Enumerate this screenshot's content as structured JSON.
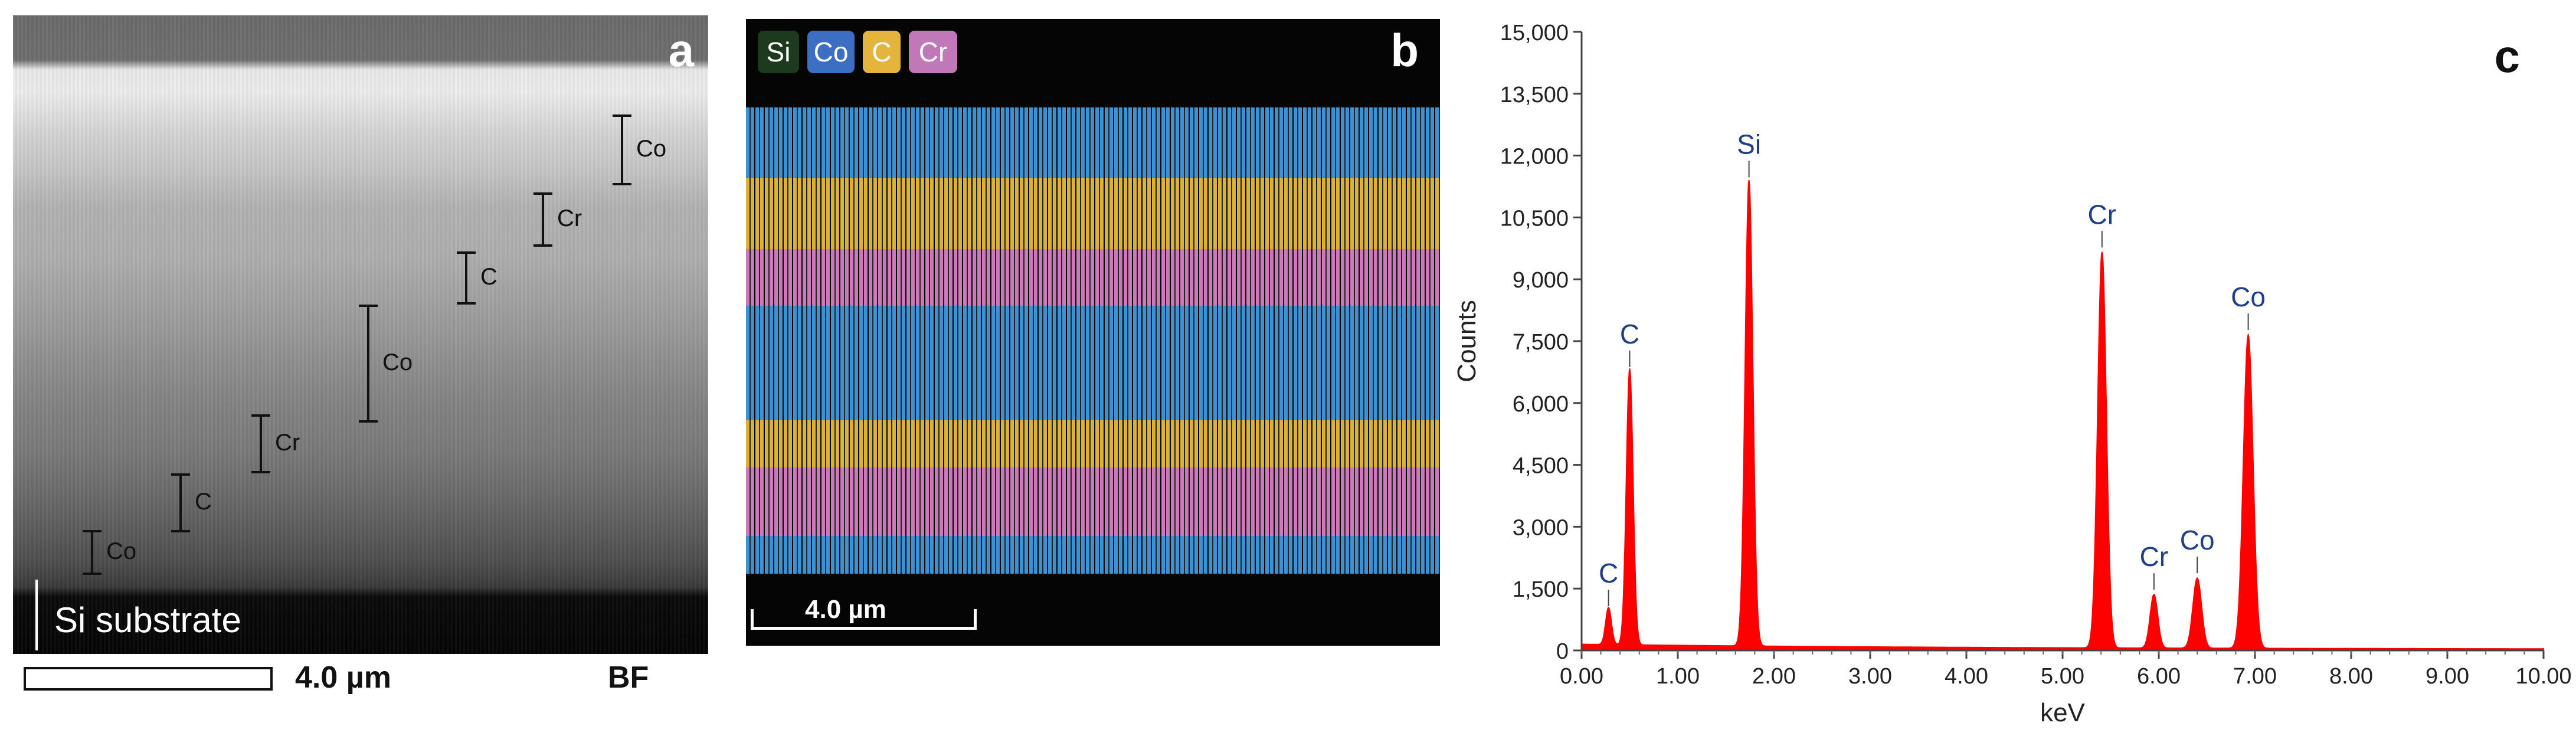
{
  "panel_a": {
    "letter": "a",
    "layers": [
      {
        "label": "Co",
        "top": 0
      },
      {
        "label": "Cr",
        "top": 0
      },
      {
        "label": "C",
        "top": 0
      },
      {
        "label": "Co",
        "top": 0
      },
      {
        "label": "Cr",
        "top": 0
      },
      {
        "label": "C",
        "top": 0
      },
      {
        "label": "Co",
        "top": 0
      }
    ],
    "substrate_label": "Si substrate",
    "scalebar_label": "4.0 µm",
    "mode_label": "BF"
  },
  "panel_b": {
    "letter": "b",
    "legend": [
      {
        "label": "Si",
        "color": "#1e3a1e"
      },
      {
        "label": "Co",
        "color": "#3c6fc4"
      },
      {
        "label": "C",
        "color": "#e4b43c"
      },
      {
        "label": "Cr",
        "color": "#c078b8"
      }
    ],
    "band_colors": {
      "Co": "#3f90cf",
      "C": "#d9b23e",
      "Cr": "#c97ab8",
      "Si": "#050505"
    },
    "scalebar_label": "4.0 µm"
  },
  "panel_c": {
    "letter": "c",
    "accent_color": "#ff0000",
    "label_color": "#1f3e8a"
  },
  "chart_data": {
    "type": "area",
    "xlabel": "keV",
    "ylabel": "Counts",
    "xlim": [
      0,
      10
    ],
    "ylim": [
      0,
      15000
    ],
    "x_ticks": [
      "0.00",
      "1.00",
      "2.00",
      "3.00",
      "4.00",
      "5.00",
      "6.00",
      "7.00",
      "8.00",
      "9.00",
      "10.00"
    ],
    "y_ticks": [
      "0",
      "1,500",
      "3,000",
      "4,500",
      "6,000",
      "7,500",
      "9,000",
      "10,500",
      "12,000",
      "13,500",
      "15,000"
    ],
    "peaks": [
      {
        "label": "C",
        "x": 0.28,
        "y": 900,
        "width": 0.03
      },
      {
        "label": "C",
        "x": 0.5,
        "y": 6700,
        "width": 0.035
      },
      {
        "label": "Si",
        "x": 1.74,
        "y": 11300,
        "width": 0.04
      },
      {
        "label": "Cr",
        "x": 5.41,
        "y": 9600,
        "width": 0.045
      },
      {
        "label": "Cr",
        "x": 5.95,
        "y": 1300,
        "width": 0.04
      },
      {
        "label": "Co",
        "x": 6.4,
        "y": 1700,
        "width": 0.045
      },
      {
        "label": "Co",
        "x": 6.93,
        "y": 7600,
        "width": 0.05
      }
    ],
    "background_level": 120
  }
}
